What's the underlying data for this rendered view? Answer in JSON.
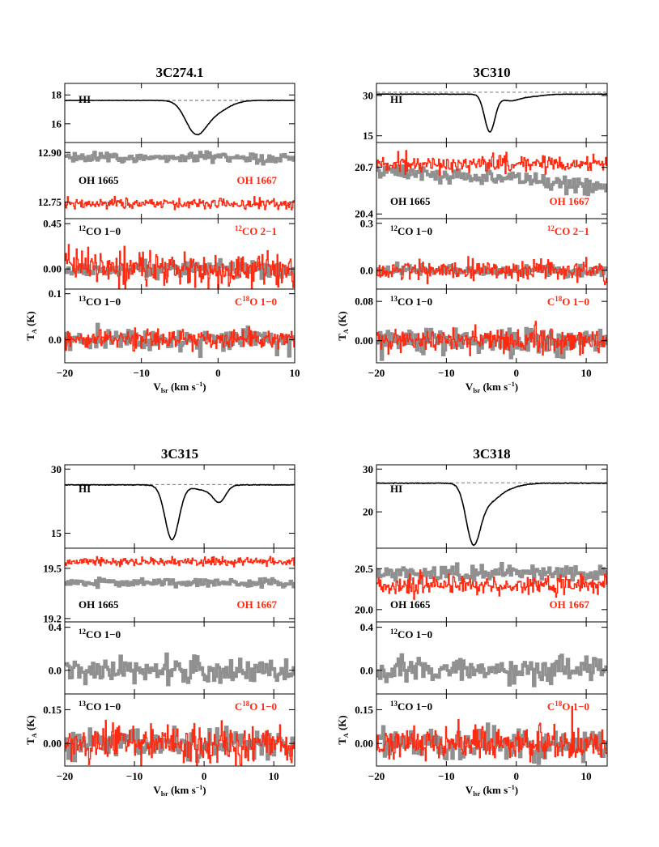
{
  "figure": {
    "xlabel_main": "V",
    "xlabel_sub": "lsr",
    "xlabel_unit": "(km s",
    "xlabel_exp": "−1",
    "xlabel_close": ")",
    "ylabel_main": "T",
    "ylabel_sub": "A",
    "ylabel_unit": "(K)",
    "colors": {
      "black": "#000000",
      "gray": "#909090",
      "red": "#ff2a12",
      "dashed": "#666666"
    }
  },
  "chart_data": [
    {
      "type": "line",
      "title": "3C274.1",
      "x_range": [
        -20,
        10
      ],
      "x_ticks": [
        "−20",
        "−10",
        "0",
        "10"
      ],
      "x_tick_values": [
        -20,
        -10,
        0,
        10
      ],
      "panels": [
        {
          "id": "hi",
          "ylim": [
            14.7,
            18.8
          ],
          "yticks": [
            16,
            18
          ],
          "ytick_labels": [
            "16",
            "18"
          ],
          "labels": [
            {
              "text": "HI",
              "color": "black",
              "pos": "left-mid"
            }
          ],
          "series": [
            {
              "color": "black",
              "kind": "profile",
              "baseline": 17.62,
              "dips": [
                {
                  "center": -3.0,
                  "depth": 1.88,
                  "width": 1.3
                },
                {
                  "center": -0.8,
                  "depth": 0.9,
                  "width": 1.9
                }
              ]
            }
          ],
          "dashed_baseline": 17.62
        },
        {
          "id": "oh",
          "ylim": [
            12.7,
            12.93
          ],
          "yticks": [
            12.75,
            12.9
          ],
          "ytick_labels": [
            "12.75",
            "12.90"
          ],
          "labels": [
            {
              "text": "OH 1665",
              "color": "black",
              "pos": "left"
            },
            {
              "text": "OH 1667",
              "color": "red",
              "pos": "right"
            }
          ],
          "series": [
            {
              "color": "gray",
              "kind": "noise-step",
              "mean": 12.884,
              "sigma": 0.008
            },
            {
              "color": "red",
              "kind": "noise",
              "mean": 12.745,
              "sigma": 0.008
            }
          ]
        },
        {
          "id": "co12",
          "ylim": [
            -0.2,
            0.5
          ],
          "yticks": [
            0,
            0.45
          ],
          "ytick_labels": [
            "0.00",
            "0.45"
          ],
          "labels": [
            {
              "text": "12",
              "sup": true,
              "rest": "CO 1−0",
              "color": "black",
              "pos": "left"
            },
            {
              "text": "12",
              "sup": true,
              "rest": "CO 2−1",
              "color": "red",
              "pos": "right"
            }
          ],
          "series": [
            {
              "color": "gray",
              "kind": "noise-step",
              "mean": 0.0,
              "sigma": 0.04
            },
            {
              "color": "red",
              "kind": "noise",
              "mean": 0.0,
              "sigma": 0.09
            }
          ]
        },
        {
          "id": "co13",
          "ylim": [
            -0.05,
            0.11
          ],
          "yticks": [
            0,
            0.1
          ],
          "ytick_labels": [
            "0.0",
            "0.1"
          ],
          "labels": [
            {
              "text": "13",
              "sup": true,
              "rest": "CO 1−0",
              "color": "black",
              "pos": "left"
            },
            {
              "text": "C",
              "sup18": "18",
              "rest": "O 1−0",
              "color": "red",
              "pos": "right"
            }
          ],
          "series": [
            {
              "color": "gray",
              "kind": "noise-step",
              "mean": 0.0,
              "sigma": 0.012
            },
            {
              "color": "red",
              "kind": "noise",
              "mean": 0.0,
              "sigma": 0.011
            }
          ],
          "ylabel": true
        }
      ]
    },
    {
      "type": "line",
      "title": "3C310",
      "x_range": [
        -20,
        13
      ],
      "x_ticks": [
        "−20",
        "−10",
        "0",
        "10"
      ],
      "x_tick_values": [
        -20,
        -10,
        0,
        10
      ],
      "panels": [
        {
          "id": "hi",
          "ylim": [
            12.5,
            34.5
          ],
          "yticks": [
            15,
            30
          ],
          "ytick_labels": [
            "15",
            "30"
          ],
          "labels": [
            {
              "text": "HI",
              "color": "black",
              "pos": "left-mid"
            }
          ],
          "series": [
            {
              "color": "black",
              "kind": "profile",
              "baseline": 30.5,
              "dips": [
                {
                  "center": -3.8,
                  "depth": 13.8,
                  "width": 0.75
                },
                {
                  "center": -1.0,
                  "depth": 2.2,
                  "width": 1.3
                },
                {
                  "center": 1.8,
                  "depth": 0.9,
                  "width": 1.8
                }
              ]
            }
          ],
          "dashed_baseline": 31.2
        },
        {
          "id": "oh",
          "ylim": [
            20.37,
            20.86
          ],
          "yticks": [
            20.4,
            20.7
          ],
          "ytick_labels": [
            "20.4",
            "20.7"
          ],
          "labels": [
            {
              "text": "OH 1665",
              "color": "black",
              "pos": "left"
            },
            {
              "text": "OH 1667",
              "color": "red",
              "pos": "right"
            }
          ],
          "series": [
            {
              "color": "gray",
              "kind": "noise-step",
              "mean": 20.68,
              "sigma": 0.025,
              "slope": -0.003
            },
            {
              "color": "red",
              "kind": "noise",
              "mean": 20.72,
              "sigma": 0.028
            }
          ]
        },
        {
          "id": "co12",
          "ylim": [
            -0.12,
            0.33
          ],
          "yticks": [
            0,
            0.3
          ],
          "ytick_labels": [
            "0.0",
            "0.3"
          ],
          "labels": [
            {
              "text": "12",
              "sup": true,
              "rest": "CO 1−0",
              "color": "black",
              "pos": "left"
            },
            {
              "text": "12",
              "sup": true,
              "rest": "CO 2−1",
              "color": "red",
              "pos": "right"
            }
          ],
          "series": [
            {
              "color": "gray",
              "kind": "noise-step",
              "mean": 0.0,
              "sigma": 0.018
            },
            {
              "color": "red",
              "kind": "noise",
              "mean": 0.0,
              "sigma": 0.03
            }
          ]
        },
        {
          "id": "co13",
          "ylim": [
            -0.045,
            0.105
          ],
          "yticks": [
            0,
            0.08
          ],
          "ytick_labels": [
            "0.00",
            "0.08"
          ],
          "labels": [
            {
              "text": "13",
              "sup": true,
              "rest": "CO 1−0",
              "color": "black",
              "pos": "left"
            },
            {
              "text": "C",
              "sup18": "18",
              "rest": "O 1−0",
              "color": "red",
              "pos": "right"
            }
          ],
          "series": [
            {
              "color": "gray",
              "kind": "noise-step",
              "mean": 0.0,
              "sigma": 0.014
            },
            {
              "color": "red",
              "kind": "noise",
              "mean": 0.0,
              "sigma": 0.013
            }
          ],
          "ylabel": true
        }
      ]
    },
    {
      "type": "line",
      "title": "3C315",
      "x_range": [
        -20,
        13
      ],
      "x_ticks": [
        "−20",
        "−10",
        "0",
        "10"
      ],
      "x_tick_values": [
        -20,
        -10,
        0,
        10
      ],
      "panels": [
        {
          "id": "hi",
          "ylim": [
            11.5,
            31
          ],
          "yticks": [
            15,
            30
          ],
          "ytick_labels": [
            "15",
            "30"
          ],
          "labels": [
            {
              "text": "HI",
              "color": "black",
              "pos": "left-mid"
            }
          ],
          "series": [
            {
              "color": "black",
              "kind": "profile",
              "baseline": 26.3,
              "dips": [
                {
                  "center": -4.6,
                  "depth": 12.8,
                  "width": 1.0
                },
                {
                  "center": 2.2,
                  "depth": 3.6,
                  "width": 0.9
                },
                {
                  "center": 0.0,
                  "depth": 1.2,
                  "width": 1.6
                }
              ]
            }
          ],
          "dashed_baseline": 26.4
        },
        {
          "id": "oh",
          "ylim": [
            19.18,
            19.62
          ],
          "yticks": [
            19.2,
            19.5
          ],
          "ytick_labels": [
            "19.2",
            "19.5"
          ],
          "labels": [
            {
              "text": "OH 1665",
              "color": "black",
              "pos": "left"
            },
            {
              "text": "OH 1667",
              "color": "red",
              "pos": "right"
            }
          ],
          "series": [
            {
              "color": "gray",
              "kind": "noise-step",
              "mean": 19.415,
              "sigma": 0.012
            },
            {
              "color": "red",
              "kind": "noise",
              "mean": 19.54,
              "sigma": 0.012
            }
          ]
        },
        {
          "id": "co12",
          "ylim": [
            -0.22,
            0.45
          ],
          "yticks": [
            0,
            0.4
          ],
          "ytick_labels": [
            "0.0",
            "0.4"
          ],
          "labels": [
            {
              "text": "12",
              "sup": true,
              "rest": "CO 1−0",
              "color": "black",
              "pos": "left"
            }
          ],
          "series": [
            {
              "color": "gray",
              "kind": "noise-step",
              "mean": 0.0,
              "sigma": 0.07
            }
          ]
        },
        {
          "id": "co13",
          "ylim": [
            -0.1,
            0.22
          ],
          "yticks": [
            0,
            0.15
          ],
          "ytick_labels": [
            "0.00",
            "0.15"
          ],
          "labels": [
            {
              "text": "13",
              "sup": true,
              "rest": "CO 1−0",
              "color": "black",
              "pos": "left"
            },
            {
              "text": "C",
              "sup18": "18",
              "rest": "O 1−0",
              "color": "red",
              "pos": "right"
            }
          ],
          "series": [
            {
              "color": "gray",
              "kind": "noise-step",
              "mean": 0.0,
              "sigma": 0.035
            },
            {
              "color": "red",
              "kind": "noise",
              "mean": 0.0,
              "sigma": 0.04
            }
          ],
          "ylabel": true
        }
      ]
    },
    {
      "type": "line",
      "title": "3C318",
      "x_range": [
        -20,
        13
      ],
      "x_ticks": [
        "−20",
        "−10",
        "0",
        "10"
      ],
      "x_tick_values": [
        -20,
        -10,
        0,
        10
      ],
      "panels": [
        {
          "id": "hi",
          "ylim": [
            11.5,
            31
          ],
          "yticks": [
            20,
            30
          ],
          "ytick_labels": [
            "20",
            "30"
          ],
          "labels": [
            {
              "text": "HI",
              "color": "black",
              "pos": "left-mid"
            }
          ],
          "series": [
            {
              "color": "black",
              "kind": "profile",
              "baseline": 26.7,
              "dips": [
                {
                  "center": -6.2,
                  "depth": 12.5,
                  "width": 1.0
                },
                {
                  "center": -4.2,
                  "depth": 4.0,
                  "width": 1.6
                },
                {
                  "center": -1.5,
                  "depth": 1.0,
                  "width": 2.0
                }
              ]
            }
          ],
          "dashed_baseline": 26.8
        },
        {
          "id": "oh",
          "ylim": [
            19.85,
            20.75
          ],
          "yticks": [
            20.0,
            20.5
          ],
          "ytick_labels": [
            "20.0",
            "20.5"
          ],
          "labels": [
            {
              "text": "OH 1665",
              "color": "black",
              "pos": "left"
            },
            {
              "text": "OH 1667",
              "color": "red",
              "pos": "right"
            }
          ],
          "series": [
            {
              "color": "gray",
              "kind": "noise-step",
              "mean": 20.44,
              "sigma": 0.05
            },
            {
              "color": "red",
              "kind": "noise",
              "mean": 20.3,
              "sigma": 0.06
            }
          ]
        },
        {
          "id": "co12",
          "ylim": [
            -0.22,
            0.45
          ],
          "yticks": [
            0,
            0.4
          ],
          "ytick_labels": [
            "0.0",
            "0.4"
          ],
          "labels": [
            {
              "text": "12",
              "sup": true,
              "rest": "CO 1−0",
              "color": "black",
              "pos": "left"
            }
          ],
          "series": [
            {
              "color": "gray",
              "kind": "noise-step",
              "mean": 0.0,
              "sigma": 0.06
            }
          ]
        },
        {
          "id": "co13",
          "ylim": [
            -0.1,
            0.22
          ],
          "yticks": [
            0,
            0.15
          ],
          "ytick_labels": [
            "0.00",
            "0.15"
          ],
          "labels": [
            {
              "text": "13",
              "sup": true,
              "rest": "CO 1−0",
              "color": "black",
              "pos": "left"
            },
            {
              "text": "C",
              "sup18": "18",
              "rest": "O 1−0",
              "color": "red",
              "pos": "right"
            }
          ],
          "series": [
            {
              "color": "gray",
              "kind": "noise-step",
              "mean": 0.0,
              "sigma": 0.035
            },
            {
              "color": "red",
              "kind": "noise",
              "mean": 0.0,
              "sigma": 0.04
            }
          ],
          "ylabel": true
        }
      ]
    }
  ]
}
